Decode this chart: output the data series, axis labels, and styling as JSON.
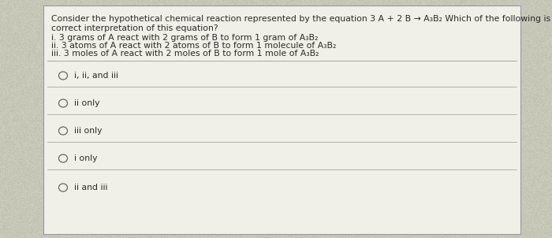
{
  "bg_color": "#c8c8b8",
  "panel_color": "#f0f0e8",
  "title_line1": "Consider the hypothetical chemical reaction represented by the equation 3 A + 2 B → A₃B₂ Which of the following is a",
  "title_line2": "correct interpretation of this equation?",
  "items": [
    "i. 3 grams of A react with 2 grams of B to form 1 gram of A₃B₂",
    "ii. 3 atoms of A react with 2 atoms of B to form 1 molecule of A₃B₂",
    "iii. 3 moles of A react with 2 moles of B to form 1 mole of A₃B₂"
  ],
  "choices": [
    "i, ii, and iii",
    "ii only",
    "iii only",
    "i only",
    "ii and iii"
  ],
  "text_color": "#2a2a2a",
  "line_color": "#999999",
  "circle_color": "#666666",
  "font_size": 7.8
}
